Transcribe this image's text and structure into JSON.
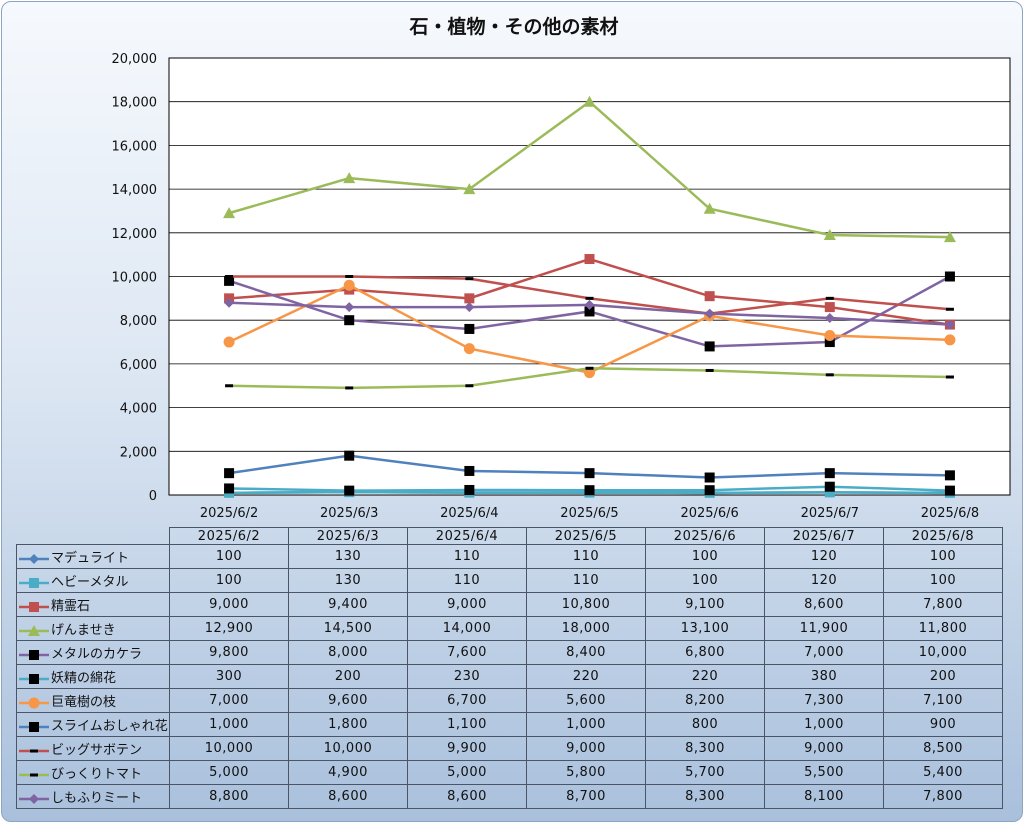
{
  "title": "石・植物・その他の素材",
  "chart_data": {
    "type": "line",
    "title": "石・植物・その他の素材",
    "xlabel": "",
    "ylabel": "",
    "ylim": [
      0,
      20000
    ],
    "yticks": [
      "0",
      "2,000",
      "4,000",
      "6,000",
      "8,000",
      "10,000",
      "12,000",
      "14,000",
      "16,000",
      "18,000",
      "20,000"
    ],
    "grid": true,
    "legend": "data table below plot",
    "categories": [
      "2025/6/2",
      "2025/6/3",
      "2025/6/4",
      "2025/6/5",
      "2025/6/6",
      "2025/6/7",
      "2025/6/8"
    ],
    "series": [
      {
        "name": "マデュライト",
        "color": "#4f81bd",
        "marker": "diamond",
        "values": [
          100,
          130,
          110,
          110,
          100,
          120,
          100
        ],
        "labels": [
          "100",
          "130",
          "110",
          "110",
          "100",
          "120",
          "100"
        ]
      },
      {
        "name": "ヘビーメタル",
        "color": "#4bacc6",
        "marker": "square",
        "values": [
          100,
          130,
          110,
          110,
          100,
          120,
          100
        ],
        "labels": [
          "100",
          "130",
          "110",
          "110",
          "100",
          "120",
          "100"
        ]
      },
      {
        "name": "精霊石",
        "color": "#c0504d",
        "marker": "square",
        "values": [
          9000,
          9400,
          9000,
          10800,
          9100,
          8600,
          7800
        ],
        "labels": [
          "9,000",
          "9,400",
          "9,000",
          "10,800",
          "9,100",
          "8,600",
          "7,800"
        ]
      },
      {
        "name": "げんませき",
        "color": "#9bbb59",
        "marker": "triangle",
        "values": [
          12900,
          14500,
          14000,
          18000,
          13100,
          11900,
          11800
        ],
        "labels": [
          "12,900",
          "14,500",
          "14,000",
          "18,000",
          "13,100",
          "11,900",
          "11,800"
        ]
      },
      {
        "name": "メタルのカケラ",
        "color": "#8064a2",
        "marker": "square-black",
        "values": [
          9800,
          8000,
          7600,
          8400,
          6800,
          7000,
          10000
        ],
        "labels": [
          "9,800",
          "8,000",
          "7,600",
          "8,400",
          "6,800",
          "7,000",
          "10,000"
        ]
      },
      {
        "name": "妖精の綿花",
        "color": "#4bacc6",
        "marker": "square-black",
        "values": [
          300,
          200,
          230,
          220,
          220,
          380,
          200
        ],
        "labels": [
          "300",
          "200",
          "230",
          "220",
          "220",
          "380",
          "200"
        ]
      },
      {
        "name": "巨竜樹の枝",
        "color": "#f79646",
        "marker": "circle",
        "values": [
          7000,
          9600,
          6700,
          5600,
          8200,
          7300,
          7100
        ],
        "labels": [
          "7,000",
          "9,600",
          "6,700",
          "5,600",
          "8,200",
          "7,300",
          "7,100"
        ]
      },
      {
        "name": "スライムおしゃれ花",
        "color": "#4f81bd",
        "marker": "square-black",
        "values": [
          1000,
          1800,
          1100,
          1000,
          800,
          1000,
          900
        ],
        "labels": [
          "1,000",
          "1,800",
          "1,100",
          "1,000",
          "800",
          "1,000",
          "900"
        ]
      },
      {
        "name": "ビッグサボテン",
        "color": "#c0504d",
        "marker": "dash-black",
        "values": [
          10000,
          10000,
          9900,
          9000,
          8300,
          9000,
          8500
        ],
        "labels": [
          "10,000",
          "10,000",
          "9,900",
          "9,000",
          "8,300",
          "9,000",
          "8,500"
        ]
      },
      {
        "name": "びっくりトマト",
        "color": "#9bbb59",
        "marker": "dash-black",
        "values": [
          5000,
          4900,
          5000,
          5800,
          5700,
          5500,
          5400
        ],
        "labels": [
          "5,000",
          "4,900",
          "5,000",
          "5,800",
          "5,700",
          "5,500",
          "5,400"
        ]
      },
      {
        "name": "しもふりミート",
        "color": "#8064a2",
        "marker": "diamond",
        "values": [
          8800,
          8600,
          8600,
          8700,
          8300,
          8100,
          7800
        ],
        "labels": [
          "8,800",
          "8,600",
          "8,600",
          "8,700",
          "8,300",
          "8,100",
          "7,800"
        ]
      }
    ]
  }
}
